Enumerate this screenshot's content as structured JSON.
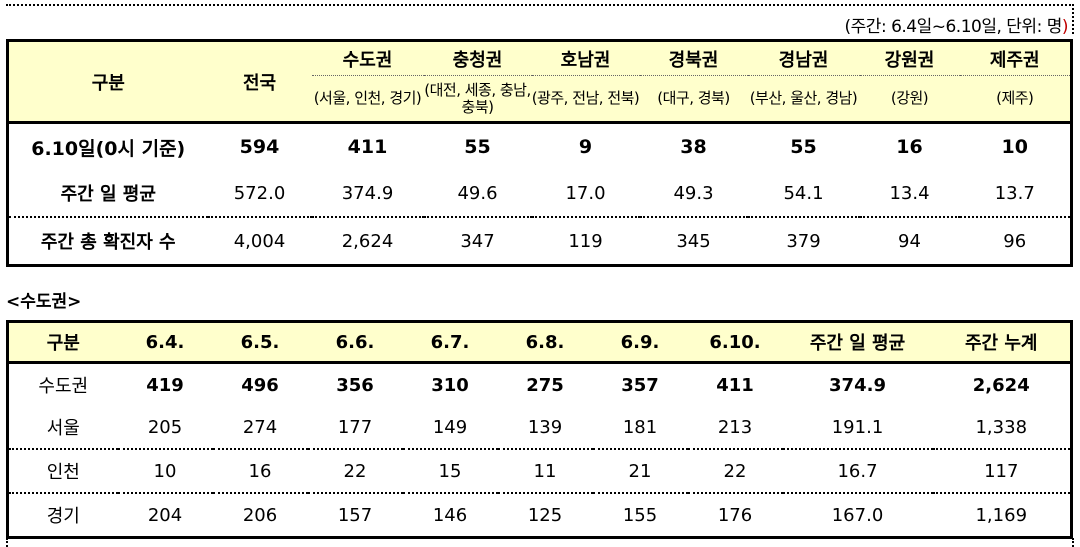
{
  "unit_note": {
    "text": "(주간: 6.4일~6.10일, 단위: 명",
    "close_paren": ")"
  },
  "table1": {
    "header": {
      "category": "구분",
      "national": "전국",
      "regions": [
        {
          "name": "수도권",
          "sub": "(서울, 인천, 경기)"
        },
        {
          "name": "충청권",
          "sub": "(대전, 세종, 충남, 충북)"
        },
        {
          "name": "호남권",
          "sub": "(광주, 전남, 전북)"
        },
        {
          "name": "경북권",
          "sub": "(대구, 경북)"
        },
        {
          "name": "경남권",
          "sub": "(부산, 울산, 경남)"
        },
        {
          "name": "강원권",
          "sub": "(강원)"
        },
        {
          "name": "제주권",
          "sub": "(제주)"
        }
      ]
    },
    "rows": [
      {
        "label": "6.10일(0시 기준)",
        "values": [
          "594",
          "411",
          "55",
          "9",
          "38",
          "55",
          "16",
          "10"
        ]
      },
      {
        "label": "주간 일 평균",
        "values": [
          "572.0",
          "374.9",
          "49.6",
          "17.0",
          "49.3",
          "54.1",
          "13.4",
          "13.7"
        ]
      },
      {
        "label": "주간 총 확진자 수",
        "values": [
          "4,004",
          "2,624",
          "347",
          "119",
          "345",
          "379",
          "94",
          "96"
        ]
      }
    ]
  },
  "section_title": "<수도권>",
  "table2": {
    "headers": [
      "구분",
      "6.4.",
      "6.5.",
      "6.6.",
      "6.7.",
      "6.8.",
      "6.9.",
      "6.10.",
      "주간 일 평균",
      "주간 누계"
    ],
    "rows": [
      {
        "label": "수도권",
        "values": [
          "419",
          "496",
          "356",
          "310",
          "275",
          "357",
          "411",
          "374.9",
          "2,624"
        ]
      },
      {
        "label": "서울",
        "values": [
          "205",
          "274",
          "177",
          "149",
          "139",
          "181",
          "213",
          "191.1",
          "1,338"
        ]
      },
      {
        "label": "인천",
        "values": [
          "10",
          "16",
          "22",
          "15",
          "11",
          "21",
          "22",
          "16.7",
          "117"
        ]
      },
      {
        "label": "경기",
        "values": [
          "204",
          "206",
          "157",
          "146",
          "125",
          "155",
          "176",
          "167.0",
          "1,169"
        ]
      }
    ]
  }
}
